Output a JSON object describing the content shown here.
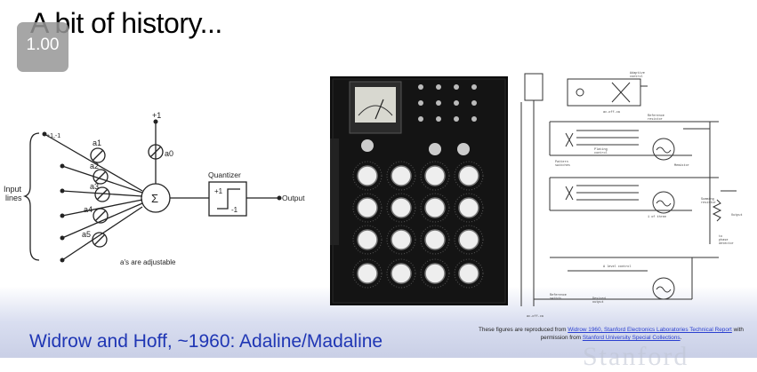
{
  "slide": {
    "title": "A bit of history...",
    "caption": "Widrow and Hoff, ~1960: Adaline/Madaline"
  },
  "player": {
    "speed_label": "1.00"
  },
  "diagram": {
    "input_label_line1": "Input",
    "input_label_line2": "lines",
    "bias_input": "+1,-1",
    "bias_plus": "+1",
    "weight_zero": "a0",
    "weights": [
      "a1",
      "a2",
      "a3",
      "a4",
      "a5"
    ],
    "sum_symbol": "Σ",
    "quantizer_label": "Quantizer",
    "quantizer_plus": "+1",
    "quantizer_minus": "-1",
    "output_label": "Output",
    "note": "a's are adjustable"
  },
  "credit": {
    "prefix": "These figures are reproduced from ",
    "link1": "Widrow 1960, Stanford Electronics Laboratories Technical Report",
    "middle": " with permission from ",
    "link2": "Stanford University Special Collections",
    "suffix": "."
  },
  "watermark": "Stanford"
}
